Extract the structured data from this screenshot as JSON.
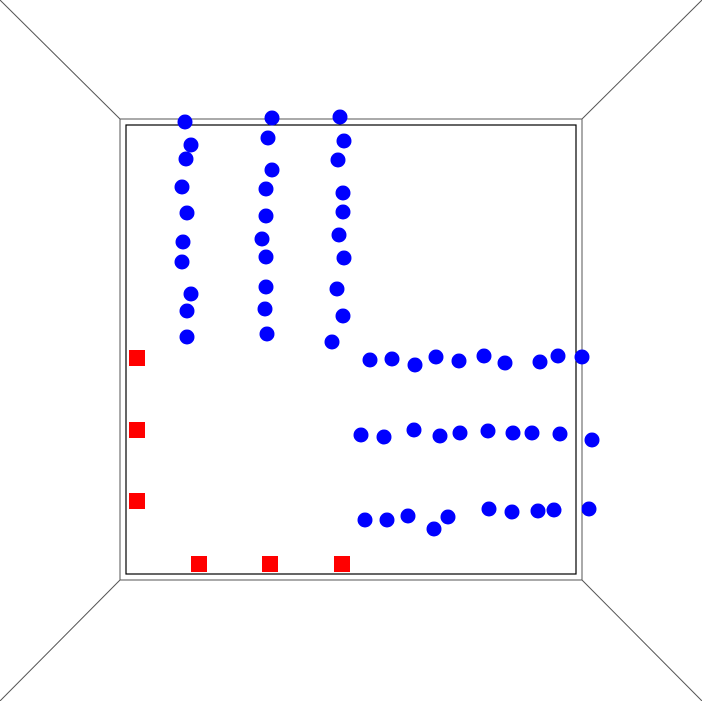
{
  "colors": {
    "background": "#ffffff",
    "edge": "#555555",
    "frame": "#000000",
    "agent": "#0000ff",
    "target": "#ff0000"
  },
  "shapes": {
    "agent": "circle",
    "target": "square"
  },
  "counts": {
    "agents": 60,
    "targets": 6
  }
}
